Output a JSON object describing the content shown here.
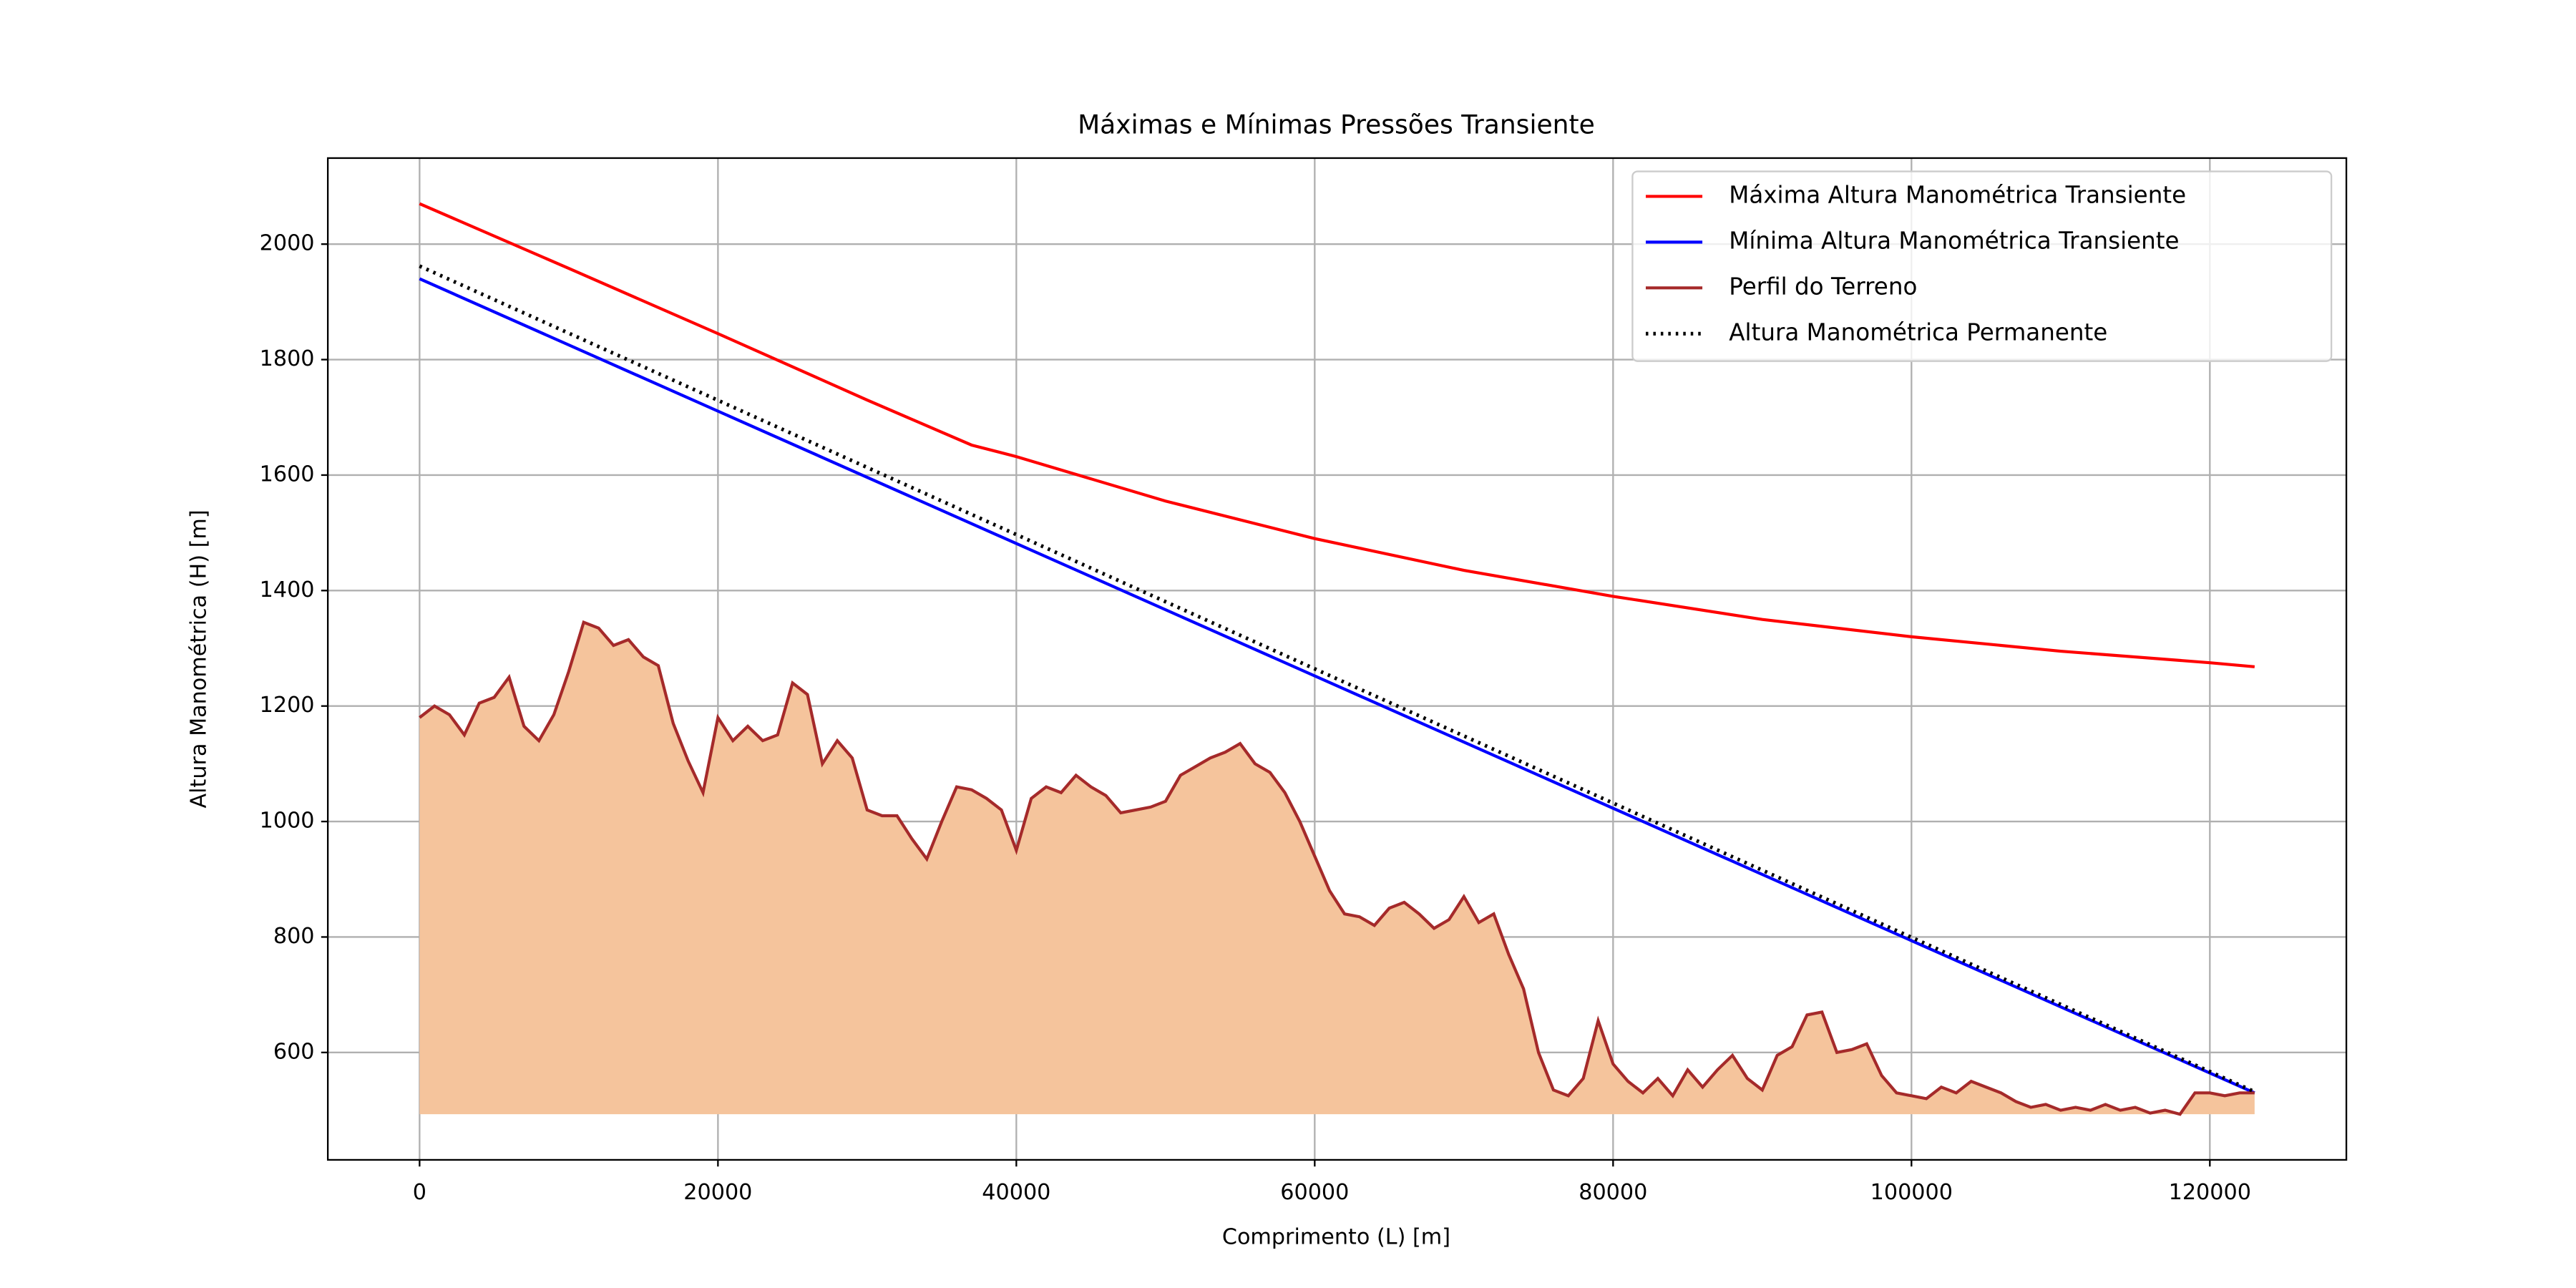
{
  "chart_data": {
    "type": "line",
    "title": "Máximas e Mínimas Pressões Transiente",
    "x_label": "Comprimento (L) [m]",
    "y_label": "Altura Manométrica (H) [m]",
    "xlim": [
      -6150,
      129150
    ],
    "ylim": [
      414,
      2149
    ],
    "xticks": [
      0,
      20000,
      40000,
      60000,
      80000,
      100000,
      120000
    ],
    "yticks": [
      600,
      800,
      1000,
      1200,
      1400,
      1600,
      1800,
      2000
    ],
    "grid": true,
    "legend": "upper right",
    "series": [
      {
        "name": "Máxima Altura Manométrica Transiente",
        "color": "#ff0000",
        "style": "solid",
        "x": [
          0,
          10000,
          20000,
          30000,
          37000,
          40000,
          50000,
          60000,
          70000,
          80000,
          90000,
          100000,
          110000,
          120000,
          123000
        ],
        "values": [
          2070,
          1958,
          1845,
          1730,
          1652,
          1632,
          1555,
          1490,
          1435,
          1390,
          1350,
          1320,
          1295,
          1275,
          1268
        ]
      },
      {
        "name": "Mínima Altura Manométrica Transiente",
        "color": "#0000ff",
        "style": "solid",
        "x": [
          0,
          123000
        ],
        "values": [
          1940,
          530
        ]
      },
      {
        "name": "Perfil do Terreno",
        "color": "#a52a2a",
        "style": "solid",
        "fill": "#f5c49c",
        "x": [
          0,
          1000,
          2000,
          3000,
          4000,
          5000,
          6000,
          7000,
          8000,
          9000,
          10000,
          11000,
          12000,
          13000,
          14000,
          15000,
          16000,
          17000,
          18000,
          19000,
          20000,
          21000,
          22000,
          23000,
          24000,
          25000,
          26000,
          27000,
          28000,
          29000,
          30000,
          31000,
          32000,
          33000,
          34000,
          35000,
          36000,
          37000,
          38000,
          39000,
          40000,
          41000,
          42000,
          43000,
          44000,
          45000,
          46000,
          47000,
          48000,
          49000,
          50000,
          51000,
          52000,
          53000,
          54000,
          55000,
          56000,
          57000,
          58000,
          59000,
          60000,
          61000,
          62000,
          63000,
          64000,
          65000,
          66000,
          67000,
          68000,
          69000,
          70000,
          71000,
          72000,
          73000,
          74000,
          75000,
          76000,
          77000,
          78000,
          79000,
          80000,
          81000,
          82000,
          83000,
          84000,
          85000,
          86000,
          87000,
          88000,
          89000,
          90000,
          91000,
          92000,
          93000,
          94000,
          95000,
          96000,
          97000,
          98000,
          99000,
          100000,
          101000,
          102000,
          103000,
          104000,
          105000,
          106000,
          107000,
          108000,
          109000,
          110000,
          111000,
          112000,
          113000,
          114000,
          115000,
          116000,
          117000,
          118000,
          119000,
          120000,
          121000,
          122000,
          123000
        ],
        "values": [
          1180,
          1200,
          1185,
          1150,
          1205,
          1215,
          1250,
          1165,
          1140,
          1185,
          1260,
          1345,
          1335,
          1305,
          1315,
          1285,
          1270,
          1170,
          1105,
          1050,
          1180,
          1140,
          1165,
          1140,
          1150,
          1240,
          1220,
          1100,
          1140,
          1110,
          1020,
          1010,
          1010,
          970,
          935,
          1000,
          1060,
          1055,
          1040,
          1020,
          950,
          1040,
          1060,
          1050,
          1080,
          1060,
          1045,
          1015,
          1020,
          1025,
          1035,
          1080,
          1095,
          1110,
          1120,
          1135,
          1100,
          1085,
          1050,
          1000,
          940,
          880,
          840,
          835,
          820,
          850,
          860,
          840,
          815,
          830,
          870,
          825,
          840,
          770,
          710,
          600,
          535,
          525,
          555,
          655,
          580,
          550,
          530,
          555,
          525,
          570,
          540,
          570,
          595,
          555,
          535,
          595,
          610,
          665,
          670,
          600,
          605,
          615,
          560,
          530,
          525,
          520,
          540,
          530,
          550,
          540,
          530,
          515,
          505,
          510,
          500,
          505,
          500,
          510,
          500,
          505,
          495,
          500,
          493,
          530,
          530,
          525,
          530,
          530
        ]
      },
      {
        "name": "Altura Manométrica Permanente",
        "color": "#000000",
        "style": "dotted",
        "x": [
          0,
          123000
        ],
        "values": [
          1962,
          532
        ]
      }
    ]
  }
}
